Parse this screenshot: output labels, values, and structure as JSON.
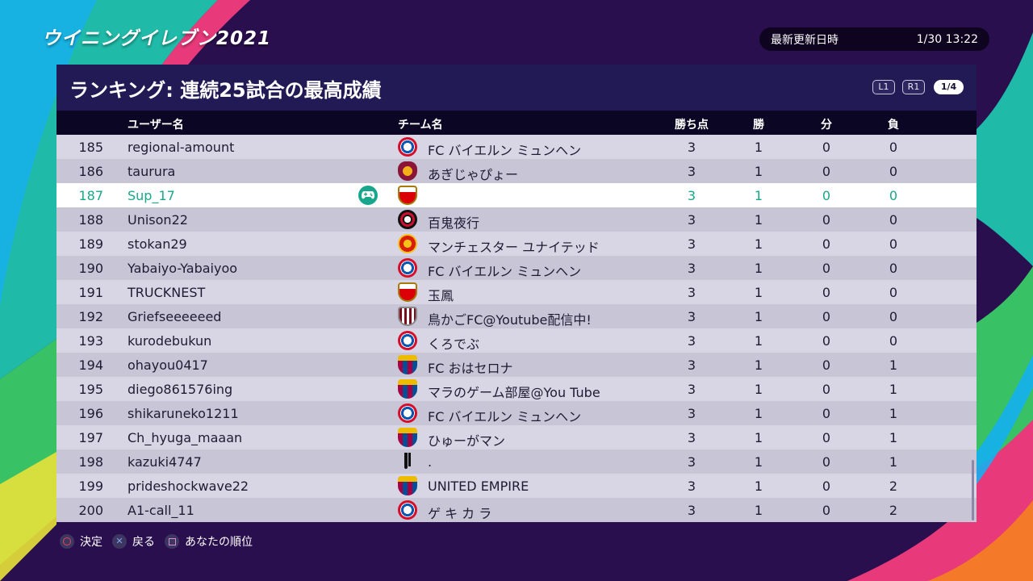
{
  "app": {
    "logo_text": "ウイニングイレブン2021"
  },
  "update": {
    "label": "最新更新日時",
    "value": "1/30 13:22"
  },
  "panel": {
    "title": "ランキング: 連続25試合の最高成績",
    "l1_label": "L1",
    "r1_label": "R1",
    "page_indicator": "1/4"
  },
  "columns": {
    "user": "ユーザー名",
    "team": "チーム名",
    "points": "勝ち点",
    "wins": "勝",
    "draws": "分",
    "losses": "負"
  },
  "rows": [
    {
      "rank": "185",
      "user": "regional-amount",
      "crest": "bayern",
      "team": "FC バイエルン ミュンヘン",
      "points": "3",
      "wins": "1",
      "draws": "0",
      "losses": "0"
    },
    {
      "rank": "186",
      "user": "taurura",
      "crest": "roma",
      "team": "あぎじゃぴょー",
      "points": "3",
      "wins": "1",
      "draws": "0",
      "losses": "0"
    },
    {
      "rank": "187",
      "user": "Sup_17",
      "crest": "arsenal",
      "team": "",
      "points": "3",
      "wins": "1",
      "draws": "0",
      "losses": "0",
      "is_me": true
    },
    {
      "rank": "188",
      "user": "Unison22",
      "crest": "milan",
      "team": "百鬼夜行",
      "points": "3",
      "wins": "1",
      "draws": "0",
      "losses": "0"
    },
    {
      "rank": "189",
      "user": "stokan29",
      "crest": "manutd",
      "team": "マンチェスター ユナイテッド",
      "points": "3",
      "wins": "1",
      "draws": "0",
      "losses": "0"
    },
    {
      "rank": "190",
      "user": "Yabaiyo-Yabaiyoo",
      "crest": "bayern",
      "team": "FC バイエルン ミュンヘン",
      "points": "3",
      "wins": "1",
      "draws": "0",
      "losses": "0"
    },
    {
      "rank": "191",
      "user": "TRUCKNEST",
      "crest": "arsenal",
      "team": "玉鳳",
      "points": "3",
      "wins": "1",
      "draws": "0",
      "losses": "0"
    },
    {
      "rank": "192",
      "user": "Griefseeeeeed",
      "crest": "kobe",
      "team": "鳥かごFC@Youtube配信中!",
      "points": "3",
      "wins": "1",
      "draws": "0",
      "losses": "0"
    },
    {
      "rank": "193",
      "user": "kurodebukun",
      "crest": "bayern",
      "team": "くろでぶ",
      "points": "3",
      "wins": "1",
      "draws": "0",
      "losses": "0"
    },
    {
      "rank": "194",
      "user": "ohayou0417",
      "crest": "barca",
      "team": "FC おはセロナ",
      "points": "3",
      "wins": "1",
      "draws": "0",
      "losses": "1"
    },
    {
      "rank": "195",
      "user": "diego861576ing",
      "crest": "barca",
      "team": "マラのゲーム部屋@You Tube",
      "points": "3",
      "wins": "1",
      "draws": "0",
      "losses": "1"
    },
    {
      "rank": "196",
      "user": "shikaruneko1211",
      "crest": "bayern",
      "team": "FC バイエルン ミュンヘン",
      "points": "3",
      "wins": "1",
      "draws": "0",
      "losses": "1"
    },
    {
      "rank": "197",
      "user": "Ch_hyuga_maaan",
      "crest": "barca",
      "team": "ひゅーがマン",
      "points": "3",
      "wins": "1",
      "draws": "0",
      "losses": "1"
    },
    {
      "rank": "198",
      "user": "kazuki4747",
      "crest": "juve",
      "team": ".",
      "points": "3",
      "wins": "1",
      "draws": "0",
      "losses": "1"
    },
    {
      "rank": "199",
      "user": "prideshockwave22",
      "crest": "barca",
      "team": "UNITED EMPIRE",
      "points": "3",
      "wins": "1",
      "draws": "0",
      "losses": "2"
    },
    {
      "rank": "200",
      "user": "A1-call_11",
      "crest": "bayern",
      "team": "ゲ キ カ ラ",
      "points": "3",
      "wins": "1",
      "draws": "0",
      "losses": "2"
    }
  ],
  "footer": {
    "confirm_label": "決定",
    "back_label": "戻る",
    "my_rank_label": "あなたの順位"
  },
  "colors": {
    "accent": "#18a78c",
    "header_bg": "#221a54",
    "row_light": "#d8d6e4",
    "row_dark": "#c7c5d6"
  }
}
